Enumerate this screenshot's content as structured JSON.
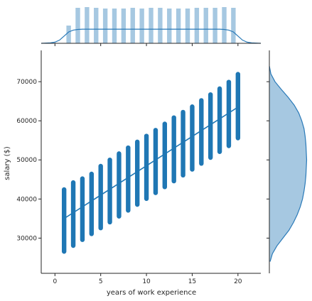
{
  "chart_data": {
    "type": "scatter",
    "title": "",
    "xlabel": "years of work experience",
    "ylabel": "salary ($)",
    "xlim": [
      -1.5,
      22.5
    ],
    "ylim": [
      21000,
      78000
    ],
    "xticks": [
      0,
      5,
      10,
      15,
      20
    ],
    "xtick_labels": [
      "0",
      "5",
      "10",
      "15",
      "20"
    ],
    "yticks": [
      30000,
      40000,
      50000,
      60000,
      70000
    ],
    "ytick_labels": [
      "30000",
      "40000",
      "50000",
      "60000",
      "70000"
    ],
    "grid": false,
    "colors": {
      "scatter": "#1f77b4",
      "marginal_fill": "#a6c8e1",
      "marginal_line": "#2a7ab8"
    },
    "point_columns": [
      {
        "x": 1,
        "ymin": 26000,
        "ymax": 43000
      },
      {
        "x": 2,
        "ymin": 27500,
        "ymax": 44800
      },
      {
        "x": 3,
        "ymin": 29000,
        "ymax": 45800
      },
      {
        "x": 4,
        "ymin": 30500,
        "ymax": 47000
      },
      {
        "x": 5,
        "ymin": 32000,
        "ymax": 49000
      },
      {
        "x": 6,
        "ymin": 33500,
        "ymax": 50600
      },
      {
        "x": 7,
        "ymin": 35000,
        "ymax": 52200
      },
      {
        "x": 8,
        "ymin": 36500,
        "ymax": 53700
      },
      {
        "x": 9,
        "ymin": 38000,
        "ymax": 55200
      },
      {
        "x": 10,
        "ymin": 39500,
        "ymax": 56700
      },
      {
        "x": 11,
        "ymin": 41000,
        "ymax": 58200
      },
      {
        "x": 12,
        "ymin": 42500,
        "ymax": 59800
      },
      {
        "x": 13,
        "ymin": 44000,
        "ymax": 61400
      },
      {
        "x": 14,
        "ymin": 45500,
        "ymax": 62800
      },
      {
        "x": 15,
        "ymin": 47000,
        "ymax": 64200
      },
      {
        "x": 16,
        "ymin": 48500,
        "ymax": 65800
      },
      {
        "x": 17,
        "ymin": 50000,
        "ymax": 67300
      },
      {
        "x": 18,
        "ymin": 51500,
        "ymax": 68800
      },
      {
        "x": 19,
        "ymin": 53000,
        "ymax": 70500
      },
      {
        "x": 20,
        "ymin": 55000,
        "ymax": 72500
      }
    ],
    "regression": {
      "x": [
        1,
        20
      ],
      "y": [
        35000,
        63500
      ]
    },
    "x_hist": {
      "bins": [
        1,
        2,
        3,
        4,
        5,
        6,
        7,
        8,
        9,
        10,
        11,
        12,
        13,
        14,
        15,
        16,
        17,
        18,
        19
      ],
      "counts": [
        0.5,
        1.0,
        1.02,
        1.0,
        0.98,
        0.98,
        0.98,
        1.0,
        0.98,
        1.0,
        1.0,
        0.98,
        0.98,
        0.98,
        1.0,
        1.0,
        1.0,
        1.02,
        1.0
      ]
    },
    "x_kde": {
      "x": [
        -1.5,
        -0.5,
        0.0,
        0.5,
        1.0,
        1.5,
        2.0,
        2.5,
        3.0,
        10.5,
        18.0,
        18.5,
        19.0,
        19.5,
        20.0,
        20.5,
        21.0,
        21.5,
        22.5
      ],
      "density": [
        0.0,
        0.02,
        0.05,
        0.14,
        0.32,
        0.5,
        0.58,
        0.61,
        0.62,
        0.62,
        0.62,
        0.61,
        0.58,
        0.5,
        0.32,
        0.14,
        0.05,
        0.02,
        0.0
      ]
    },
    "y_kde": {
      "y": [
        24000,
        26000,
        28000,
        30000,
        32000,
        34000,
        36000,
        38000,
        40000,
        42000,
        44000,
        46000,
        48000,
        50000,
        52000,
        54000,
        56000,
        58000,
        60000,
        62000,
        64000,
        66000,
        68000,
        70000,
        72000,
        74000
      ],
      "density": [
        0.02,
        0.08,
        0.2,
        0.36,
        0.52,
        0.64,
        0.74,
        0.82,
        0.88,
        0.92,
        0.95,
        0.97,
        0.98,
        0.99,
        0.98,
        0.97,
        0.95,
        0.92,
        0.86,
        0.78,
        0.66,
        0.5,
        0.32,
        0.15,
        0.04,
        0.0
      ]
    }
  }
}
